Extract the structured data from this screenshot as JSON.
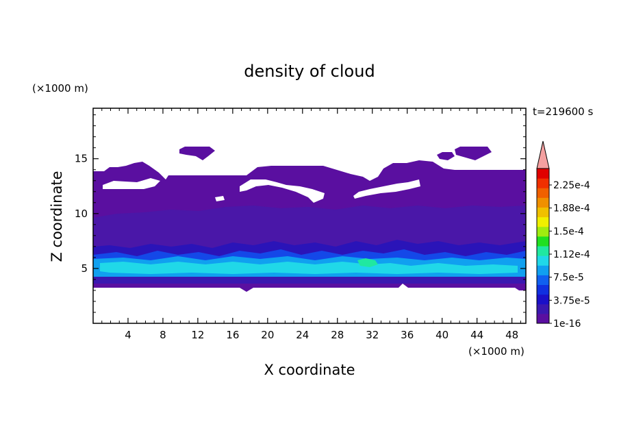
{
  "chart_data": {
    "type": "heatmap",
    "title": "density of cloud",
    "xlabel": "X coordinate",
    "ylabel": "Z coordinate",
    "x_unit": "(×1000 m)",
    "y_unit": "(×1000 m)",
    "time_label": "t=219600 s",
    "xlim": [
      0,
      49.6
    ],
    "ylim": [
      0,
      19.6
    ],
    "x_ticks": [
      "4",
      "8",
      "12",
      "16",
      "20",
      "24",
      "28",
      "32",
      "36",
      "40",
      "44",
      "48"
    ],
    "x_tick_values": [
      4,
      8,
      12,
      16,
      20,
      24,
      28,
      32,
      36,
      40,
      44,
      48
    ],
    "y_ticks": [
      "5",
      "10",
      "15"
    ],
    "y_tick_values": [
      5,
      10,
      15
    ],
    "colorbar": {
      "labels": [
        "2.25e-4",
        "1.88e-4",
        "1.5e-4",
        "1.12e-4",
        "7.5e-5",
        "3.75e-5",
        "1e-16"
      ],
      "label_values": [
        0.000225,
        0.0001875,
        0.00015,
        0.0001125,
        7.5e-05,
        3.75e-05,
        1e-16
      ],
      "level_colors": [
        "#5a0fa0",
        "#3a18b0",
        "#1a10c8",
        "#1030e0",
        "#1060f0",
        "#10a0f0",
        "#20d8e8",
        "#20e8a0",
        "#20e020",
        "#a0ec10",
        "#f0f000",
        "#f0c000",
        "#f09000",
        "#f06000",
        "#f03000",
        "#e00000"
      ],
      "extend_color": "#f4a0a0"
    },
    "cloud_layers": [
      {
        "level": "1e-16",
        "z_range": [
          3.6,
          14.2
        ],
        "x_range": [
          0,
          49.6
        ]
      },
      {
        "level": "3.75e-5",
        "z_range": [
          3.8,
          6.6
        ],
        "x_range": [
          0,
          49.6
        ]
      },
      {
        "level": "7.5e-5",
        "z_range": [
          4.2,
          6.0
        ],
        "x_range": [
          0,
          49.6
        ]
      },
      {
        "level": "1.12e-4",
        "z_range": [
          4.6,
          5.5
        ],
        "x_range": [
          0,
          49.6
        ]
      },
      {
        "level": "1.5e-4",
        "z_range": [
          5.3,
          5.7
        ],
        "x_range": [
          30.5,
          33
        ]
      }
    ],
    "grid": false
  }
}
